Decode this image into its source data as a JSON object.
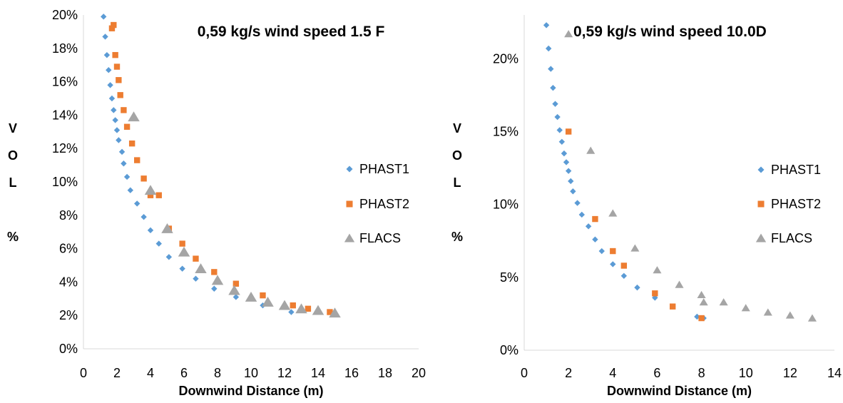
{
  "chart_data": [
    {
      "type": "scatter",
      "title": "0,59 kg/s wind speed 1.5 F",
      "xlabel": "Downwind Distance (m)",
      "ylabel_letters": [
        "V",
        "O",
        "L",
        "",
        "%"
      ],
      "xlim": [
        0,
        20
      ],
      "ylim": [
        0,
        20
      ],
      "xticks": [
        "0",
        "2",
        "4",
        "6",
        "8",
        "10",
        "12",
        "14",
        "16",
        "18",
        "20"
      ],
      "yticks": [
        "0%",
        "2%",
        "4%",
        "6%",
        "8%",
        "10%",
        "12%",
        "14%",
        "16%",
        "18%",
        "20%"
      ],
      "grid": false,
      "legend": "right",
      "series": [
        {
          "name": "PHAST1",
          "marker": "diamond",
          "color": "#5b9bd5",
          "points": [
            [
              1.2,
              19.9
            ],
            [
              1.3,
              18.7
            ],
            [
              1.4,
              17.6
            ],
            [
              1.5,
              16.7
            ],
            [
              1.6,
              15.8
            ],
            [
              1.7,
              15.0
            ],
            [
              1.8,
              14.3
            ],
            [
              1.9,
              13.7
            ],
            [
              2.0,
              13.1
            ],
            [
              2.1,
              12.5
            ],
            [
              2.3,
              11.8
            ],
            [
              2.4,
              11.1
            ],
            [
              2.6,
              10.3
            ],
            [
              2.8,
              9.5
            ],
            [
              3.2,
              8.7
            ],
            [
              3.6,
              7.9
            ],
            [
              4.0,
              7.1
            ],
            [
              4.5,
              6.3
            ],
            [
              5.1,
              5.5
            ],
            [
              5.9,
              4.8
            ],
            [
              6.7,
              4.2
            ],
            [
              7.8,
              3.6
            ],
            [
              9.1,
              3.1
            ],
            [
              10.7,
              2.6
            ],
            [
              12.4,
              2.2
            ]
          ]
        },
        {
          "name": "PHAST2",
          "marker": "square",
          "color": "#ed7d31",
          "points": [
            [
              1.7,
              19.2
            ],
            [
              1.8,
              19.4
            ],
            [
              1.9,
              17.6
            ],
            [
              2.0,
              16.9
            ],
            [
              2.1,
              16.1
            ],
            [
              2.2,
              15.2
            ],
            [
              2.4,
              14.3
            ],
            [
              2.6,
              13.3
            ],
            [
              2.9,
              12.3
            ],
            [
              3.2,
              11.3
            ],
            [
              3.6,
              10.2
            ],
            [
              4.0,
              9.2
            ],
            [
              4.5,
              9.2
            ],
            [
              5.1,
              7.2
            ],
            [
              5.9,
              6.3
            ],
            [
              6.7,
              5.4
            ],
            [
              7.8,
              4.6
            ],
            [
              9.1,
              3.9
            ],
            [
              10.7,
              3.2
            ],
            [
              12.5,
              2.6
            ],
            [
              13.4,
              2.4
            ],
            [
              14.7,
              2.2
            ]
          ]
        },
        {
          "name": "FLACS",
          "marker": "triangle",
          "color": "#a5a5a5",
          "points": [
            [
              3,
              13.9
            ],
            [
              4,
              9.5
            ],
            [
              5,
              7.2
            ],
            [
              6,
              5.8
            ],
            [
              7,
              4.8
            ],
            [
              8,
              4.1
            ],
            [
              9,
              3.5
            ],
            [
              10,
              3.1
            ],
            [
              11,
              2.8
            ],
            [
              12,
              2.6
            ],
            [
              13,
              2.4
            ],
            [
              14,
              2.3
            ],
            [
              15,
              2.15
            ]
          ]
        }
      ]
    },
    {
      "type": "scatter",
      "title": "0,59 kg/s wind speed 10.0D",
      "xlabel": "Downwind Distance (m)",
      "ylabel_letters": [
        "V",
        "O",
        "L",
        "",
        "%"
      ],
      "xlim": [
        0,
        14
      ],
      "ylim": [
        0,
        23
      ],
      "xticks": [
        "0",
        "2",
        "4",
        "6",
        "8",
        "10",
        "12",
        "14"
      ],
      "yticks": [
        "0%",
        "5%",
        "10%",
        "15%",
        "20%"
      ],
      "grid": false,
      "legend": "right",
      "series": [
        {
          "name": "PHAST1",
          "marker": "diamond",
          "color": "#5b9bd5",
          "points": [
            [
              1.0,
              22.3
            ],
            [
              1.1,
              20.7
            ],
            [
              1.2,
              19.3
            ],
            [
              1.3,
              18.0
            ],
            [
              1.4,
              16.9
            ],
            [
              1.5,
              16.0
            ],
            [
              1.6,
              15.1
            ],
            [
              1.7,
              14.3
            ],
            [
              1.8,
              13.5
            ],
            [
              1.9,
              12.9
            ],
            [
              2.0,
              12.3
            ],
            [
              2.1,
              11.6
            ],
            [
              2.2,
              10.9
            ],
            [
              2.4,
              10.1
            ],
            [
              2.6,
              9.3
            ],
            [
              2.9,
              8.5
            ],
            [
              3.2,
              7.6
            ],
            [
              3.5,
              6.8
            ],
            [
              4.0,
              5.9
            ],
            [
              4.5,
              5.1
            ],
            [
              5.1,
              4.3
            ],
            [
              5.9,
              3.6
            ],
            [
              6.7,
              3.0
            ],
            [
              7.8,
              2.3
            ],
            [
              8.1,
              2.2
            ]
          ]
        },
        {
          "name": "PHAST2",
          "marker": "square",
          "color": "#ed7d31",
          "points": [
            [
              2.0,
              15.0
            ],
            [
              3.2,
              9.0
            ],
            [
              4.0,
              6.8
            ],
            [
              4.5,
              5.8
            ],
            [
              5.9,
              3.9
            ],
            [
              6.7,
              3.0
            ],
            [
              8.0,
              2.2
            ]
          ]
        },
        {
          "name": "FLACS",
          "marker": "triangle",
          "color": "#a5a5a5",
          "points": [
            [
              2,
              21.7
            ],
            [
              3,
              13.7
            ],
            [
              4,
              9.4
            ],
            [
              5,
              7.0
            ],
            [
              6,
              5.5
            ],
            [
              7,
              4.5
            ],
            [
              8,
              3.8
            ],
            [
              8.1,
              3.3
            ],
            [
              9,
              3.3
            ],
            [
              10,
              2.9
            ],
            [
              11,
              2.6
            ],
            [
              12,
              2.4
            ],
            [
              13,
              2.2
            ]
          ]
        }
      ]
    }
  ]
}
